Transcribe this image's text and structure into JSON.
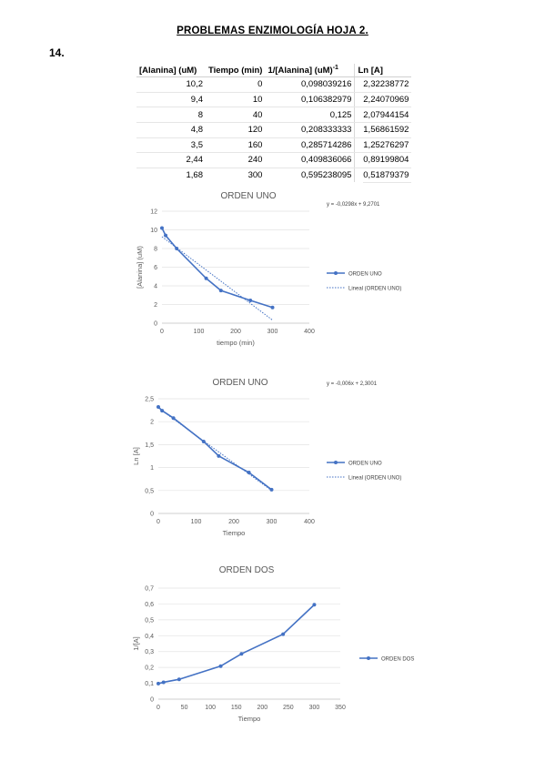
{
  "page": {
    "title": "PROBLEMAS ENZIMOLOGÍA HOJA 2.",
    "problem_number": "14."
  },
  "table": {
    "headers": [
      "[Alanina] (uM)",
      "Tiempo (min)",
      "1/[Alanina] (uM)",
      "Ln [A]"
    ],
    "header_superscript": "-1",
    "rows": [
      [
        "10,2",
        "0",
        "0,098039216",
        "2,32238772"
      ],
      [
        "9,4",
        "10",
        "0,106382979",
        "2,24070969"
      ],
      [
        "8",
        "40",
        "0,125",
        "2,07944154"
      ],
      [
        "4,8",
        "120",
        "0,208333333",
        "1,56861592"
      ],
      [
        "3,5",
        "160",
        "0,285714286",
        "1,25276297"
      ],
      [
        "2,44",
        "240",
        "0,409836066",
        "0,89199804"
      ],
      [
        "1,68",
        "300",
        "0,595238095",
        "0,51879379"
      ]
    ]
  },
  "chart_data": [
    {
      "type": "line",
      "title": "ORDEN UNO",
      "equation": "y = -0,0298x + 9,2701",
      "xlabel": "tiempo (min)",
      "ylabel": "[Alanina] (uM)",
      "xlim": [
        0,
        400
      ],
      "ylim": [
        0,
        12
      ],
      "xticks": [
        "0",
        "100",
        "200",
        "300",
        "400"
      ],
      "yticks": [
        "0",
        "2",
        "4",
        "6",
        "8",
        "10",
        "12"
      ],
      "grid": true,
      "legend_position": "right",
      "series": [
        {
          "name": "ORDEN UNO",
          "x": [
            0,
            10,
            40,
            120,
            160,
            240,
            300
          ],
          "values": [
            10.2,
            9.4,
            8,
            4.8,
            3.5,
            2.44,
            1.68
          ],
          "color": "#4472C4"
        }
      ],
      "trendline": {
        "name": "Lineal (ORDEN UNO)",
        "slope": -0.0298,
        "intercept": 9.2701
      }
    },
    {
      "type": "line",
      "title": "ORDEN UNO",
      "equation": "y = -0,006x + 2,3001",
      "xlabel": "Tiempo",
      "ylabel": "Ln [A]",
      "xlim": [
        0,
        400
      ],
      "ylim": [
        0,
        2.5
      ],
      "xticks": [
        "0",
        "100",
        "200",
        "300",
        "400"
      ],
      "yticks": [
        "0",
        "0,5",
        "1",
        "1,5",
        "2",
        "2,5"
      ],
      "grid": true,
      "legend_position": "right",
      "series": [
        {
          "name": "ORDEN UNO",
          "x": [
            0,
            10,
            40,
            120,
            160,
            240,
            300
          ],
          "values": [
            2.32238772,
            2.24070969,
            2.07944154,
            1.56861592,
            1.25276297,
            0.89199804,
            0.51879379
          ],
          "color": "#4472C4"
        }
      ],
      "trendline": {
        "name": "Lineal (ORDEN UNO)",
        "slope": -0.006,
        "intercept": 2.3001
      }
    },
    {
      "type": "line",
      "title": "ORDEN DOS",
      "xlabel": "Tiempo",
      "ylabel": "1/[A]",
      "xlim": [
        0,
        350
      ],
      "ylim": [
        0,
        0.7
      ],
      "xticks": [
        "0",
        "50",
        "100",
        "150",
        "200",
        "250",
        "300",
        "350"
      ],
      "yticks": [
        "0",
        "0,1",
        "0,2",
        "0,3",
        "0,4",
        "0,5",
        "0,6",
        "0,7"
      ],
      "grid": true,
      "legend_position": "right",
      "series": [
        {
          "name": "ORDEN DOS",
          "x": [
            0,
            10,
            40,
            120,
            160,
            240,
            300
          ],
          "values": [
            0.098039216,
            0.106382979,
            0.125,
            0.208333333,
            0.285714286,
            0.409836066,
            0.595238095
          ],
          "color": "#4472C4"
        }
      ]
    }
  ]
}
